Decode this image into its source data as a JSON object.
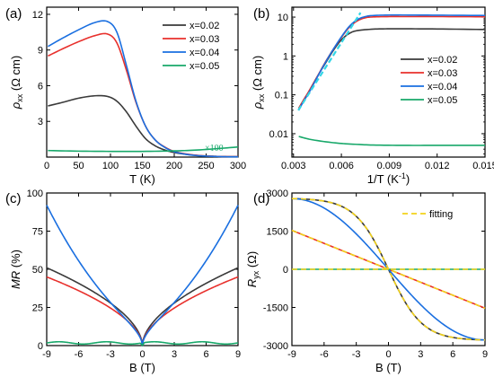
{
  "colors": {
    "x002": "#3a3a3a",
    "x003": "#e8302c",
    "x004": "#1a6fe0",
    "x005": "#18a86a",
    "fit_yellow": "#f2d21a",
    "fit_cyan": "#33d6e6",
    "black": "#000000"
  },
  "chart_data": [
    {
      "panel": "a",
      "label": "(a)",
      "type": "line",
      "xlabel": "T (K)",
      "ylabel_sym": "ρ",
      "ylabel_sub": "xx",
      "ylabel_unit": " (Ω cm)",
      "xlim": [
        0,
        300
      ],
      "ylim": [
        0,
        12.6
      ],
      "xticks": [
        0,
        50,
        100,
        150,
        200,
        250,
        300
      ],
      "yticks": [
        3,
        6,
        9,
        12
      ],
      "annotation": "×100",
      "legend_position": "top-right",
      "series": [
        {
          "name": "x=0.02",
          "color_key": "x002",
          "x": [
            2,
            25,
            50,
            75,
            95,
            110,
            125,
            140,
            155,
            170,
            185,
            200,
            220,
            240,
            260,
            280,
            300
          ],
          "y": [
            4.3,
            4.6,
            4.95,
            5.15,
            5.1,
            4.7,
            3.8,
            2.6,
            1.55,
            0.95,
            0.6,
            0.38,
            0.22,
            0.12,
            0.07,
            0.04,
            0.03
          ]
        },
        {
          "name": "x=0.03",
          "color_key": "x003",
          "x": [
            2,
            25,
            50,
            75,
            95,
            110,
            125,
            140,
            155,
            170,
            185,
            200,
            220,
            240,
            260,
            280,
            300
          ],
          "y": [
            8.5,
            9.1,
            9.7,
            10.2,
            10.35,
            9.6,
            7.3,
            4.6,
            2.6,
            1.45,
            0.85,
            0.48,
            0.25,
            0.13,
            0.07,
            0.04,
            0.03
          ]
        },
        {
          "name": "x=0.04",
          "color_key": "x004",
          "x": [
            2,
            25,
            50,
            75,
            95,
            110,
            125,
            140,
            155,
            170,
            185,
            200,
            220,
            240,
            260,
            280,
            300
          ],
          "y": [
            9.3,
            10.0,
            10.7,
            11.3,
            11.4,
            10.5,
            7.7,
            4.7,
            2.6,
            1.45,
            0.82,
            0.45,
            0.22,
            0.11,
            0.06,
            0.03,
            0.02
          ]
        },
        {
          "name": "x=0.05",
          "color_key": "x005",
          "x": [
            2,
            50,
            100,
            150,
            200,
            230,
            260,
            300
          ],
          "y": [
            0.55,
            0.5,
            0.48,
            0.48,
            0.52,
            0.58,
            0.68,
            0.85
          ]
        }
      ]
    },
    {
      "panel": "b",
      "label": "(b)",
      "type": "line",
      "log_y": true,
      "xlabel_base": "1/T (K",
      "xlabel_sup": "-1",
      "xlabel_end": ")",
      "ylabel_sym": "ρ",
      "ylabel_sub": "xx",
      "ylabel_unit": " (Ω cm)",
      "xlim": [
        0.0029,
        0.015
      ],
      "ylim": [
        0.0025,
        18
      ],
      "xticks": [
        0.003,
        0.006,
        0.009,
        0.012,
        0.015
      ],
      "xtick_labels": [
        "0.003",
        "0.006",
        "0.009",
        "0.012",
        "0.015"
      ],
      "yticks": [
        0.01,
        0.1,
        1,
        10
      ],
      "ytick_labels": [
        "0.01",
        "0.1",
        "1",
        "10"
      ],
      "legend_position": "center-right",
      "series": [
        {
          "name": "x=0.02",
          "color_key": "x002",
          "x": [
            0.00333,
            0.0036,
            0.004,
            0.0045,
            0.005,
            0.0055,
            0.006,
            0.0065,
            0.007,
            0.008,
            0.009,
            0.01,
            0.012,
            0.015
          ],
          "y": [
            0.045,
            0.07,
            0.13,
            0.3,
            0.65,
            1.4,
            2.6,
            3.8,
            4.5,
            4.9,
            5.0,
            5.0,
            4.95,
            4.8
          ]
        },
        {
          "name": "x=0.03",
          "color_key": "x003",
          "x": [
            0.00333,
            0.0036,
            0.004,
            0.0045,
            0.005,
            0.0055,
            0.006,
            0.0065,
            0.007,
            0.0075,
            0.008,
            0.009,
            0.01,
            0.012,
            0.015
          ],
          "y": [
            0.045,
            0.07,
            0.13,
            0.3,
            0.7,
            1.5,
            3.0,
            5.5,
            8.0,
            9.6,
            10.1,
            10.3,
            10.3,
            10.3,
            10.2
          ]
        },
        {
          "name": "x=0.04",
          "color_key": "x004",
          "x": [
            0.00333,
            0.0036,
            0.004,
            0.0045,
            0.005,
            0.0055,
            0.006,
            0.0065,
            0.007,
            0.0075,
            0.008,
            0.009,
            0.01,
            0.012,
            0.015
          ],
          "y": [
            0.04,
            0.065,
            0.12,
            0.29,
            0.68,
            1.5,
            3.1,
            5.8,
            8.6,
            10.3,
            11.0,
            11.3,
            11.3,
            11.2,
            11.0
          ]
        },
        {
          "name": "x=0.05",
          "color_key": "x005",
          "x": [
            0.00333,
            0.004,
            0.005,
            0.006,
            0.007,
            0.008,
            0.01,
            0.012,
            0.015
          ],
          "y": [
            0.0085,
            0.0072,
            0.0062,
            0.0056,
            0.0053,
            0.0051,
            0.005,
            0.005,
            0.005
          ]
        }
      ],
      "fits": [
        {
          "color_key": "fit_cyan",
          "x": [
            0.0033,
            0.0072
          ],
          "y": [
            0.04,
            13.0
          ]
        }
      ]
    },
    {
      "panel": "c",
      "label": "(c)",
      "type": "line",
      "xlabel": "B (T)",
      "ylabel_it": "MR",
      "ylabel_unit": " (%)",
      "xlim": [
        -9,
        9
      ],
      "ylim": [
        0,
        100
      ],
      "xticks": [
        -9,
        -6,
        -3,
        0,
        3,
        6,
        9
      ],
      "yticks": [
        0,
        25,
        50,
        75,
        100
      ],
      "series": [
        {
          "name": "x=0.02",
          "color_key": "x002",
          "amp": 51,
          "shape": "sqrt"
        },
        {
          "name": "x=0.03",
          "color_key": "x003",
          "amp": 45,
          "shape": "sqrt"
        },
        {
          "name": "x=0.04",
          "color_key": "x004",
          "amp": 92,
          "shape": "mixed"
        },
        {
          "name": "x=0.05",
          "color_key": "x005",
          "amp": 2.5,
          "shape": "flat"
        }
      ]
    },
    {
      "panel": "d",
      "label": "(d)",
      "type": "line",
      "xlabel": "B (T)",
      "ylabel_sym": "R",
      "ylabel_sub": "yx",
      "ylabel_unit": " (Ω)",
      "xlim": [
        -9,
        9
      ],
      "ylim": [
        -3000,
        3000
      ],
      "xticks": [
        -9,
        -6,
        -3,
        0,
        3,
        6,
        9
      ],
      "yticks": [
        -3000,
        -1500,
        0,
        1500,
        3000
      ],
      "legend_label": "fitting",
      "legend_position": "top-right",
      "series": [
        {
          "name": "x=0.02",
          "color_key": "x002",
          "kind": "tanh",
          "amp": 2780
        },
        {
          "name": "x=0.03",
          "color_key": "x003",
          "kind": "linear",
          "amp": 1530
        },
        {
          "name": "x=0.04",
          "color_key": "x004",
          "kind": "sine",
          "amp": 2780
        },
        {
          "name": "x=0.05",
          "color_key": "x005",
          "kind": "linear",
          "amp": 0
        }
      ],
      "fits": [
        {
          "color_key": "fit_yellow",
          "kind": "tanh",
          "amp": 2780
        },
        {
          "color_key": "fit_yellow",
          "kind": "linear",
          "amp": 1530
        },
        {
          "color_key": "fit_yellow",
          "kind": "linear",
          "amp": 0
        }
      ]
    }
  ]
}
